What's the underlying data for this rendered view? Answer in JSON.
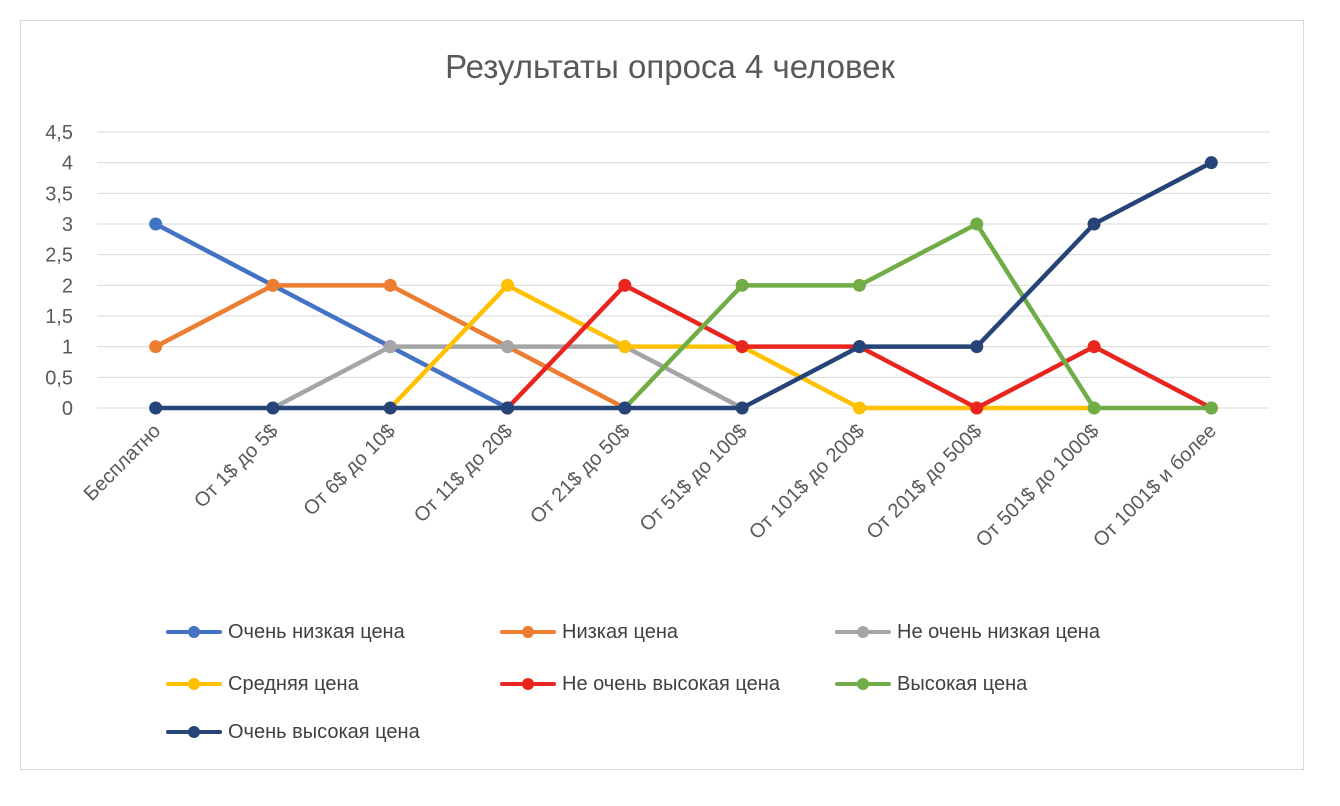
{
  "chart_data": {
    "type": "line",
    "title": "Результаты опроса 4 человек",
    "xlabel": "",
    "ylabel": "",
    "ylim": [
      0,
      4.5
    ],
    "y_ticks": [
      "0",
      "0,5",
      "1",
      "1,5",
      "2",
      "2,5",
      "3",
      "3,5",
      "4",
      "4,5"
    ],
    "grid": true,
    "legend_position": "bottom",
    "categories": [
      "Бесплатно",
      "От 1$ до 5$",
      "От 6$ до 10$",
      "От 11$ до 20$",
      "От 21$ до 50$",
      "От 51$ до 100$",
      "От 101$ до 200$",
      "От 201$ до 500$",
      "От 501$ до 1000$",
      "От 1001$ и более"
    ],
    "series": [
      {
        "name": "Очень низкая цена",
        "color": "#4472C4",
        "values": [
          3,
          2,
          1,
          0,
          null,
          null,
          null,
          null,
          null,
          null
        ]
      },
      {
        "name": "Низкая цена",
        "color": "#ED7D31",
        "values": [
          1,
          2,
          2,
          1,
          0,
          null,
          null,
          null,
          null,
          null
        ]
      },
      {
        "name": "Не очень низкая цена",
        "color": "#A5A5A5",
        "values": [
          null,
          0,
          1,
          1,
          1,
          0,
          null,
          null,
          null,
          null
        ]
      },
      {
        "name": "Средняя цена",
        "color": "#FFC000",
        "values": [
          null,
          null,
          0,
          2,
          1,
          1,
          0,
          0,
          0,
          null
        ]
      },
      {
        "name": "Не очень высокая цена",
        "color": "#E8261F",
        "values": [
          null,
          null,
          null,
          0,
          2,
          1,
          1,
          0,
          1,
          0
        ]
      },
      {
        "name": "Высокая цена",
        "color": "#70AD47",
        "values": [
          null,
          null,
          null,
          null,
          0,
          2,
          2,
          3,
          0,
          0
        ]
      },
      {
        "name": "Очень высокая цена",
        "color": "#264478",
        "values": [
          0,
          0,
          0,
          0,
          0,
          0,
          1,
          1,
          3,
          4
        ]
      }
    ]
  }
}
